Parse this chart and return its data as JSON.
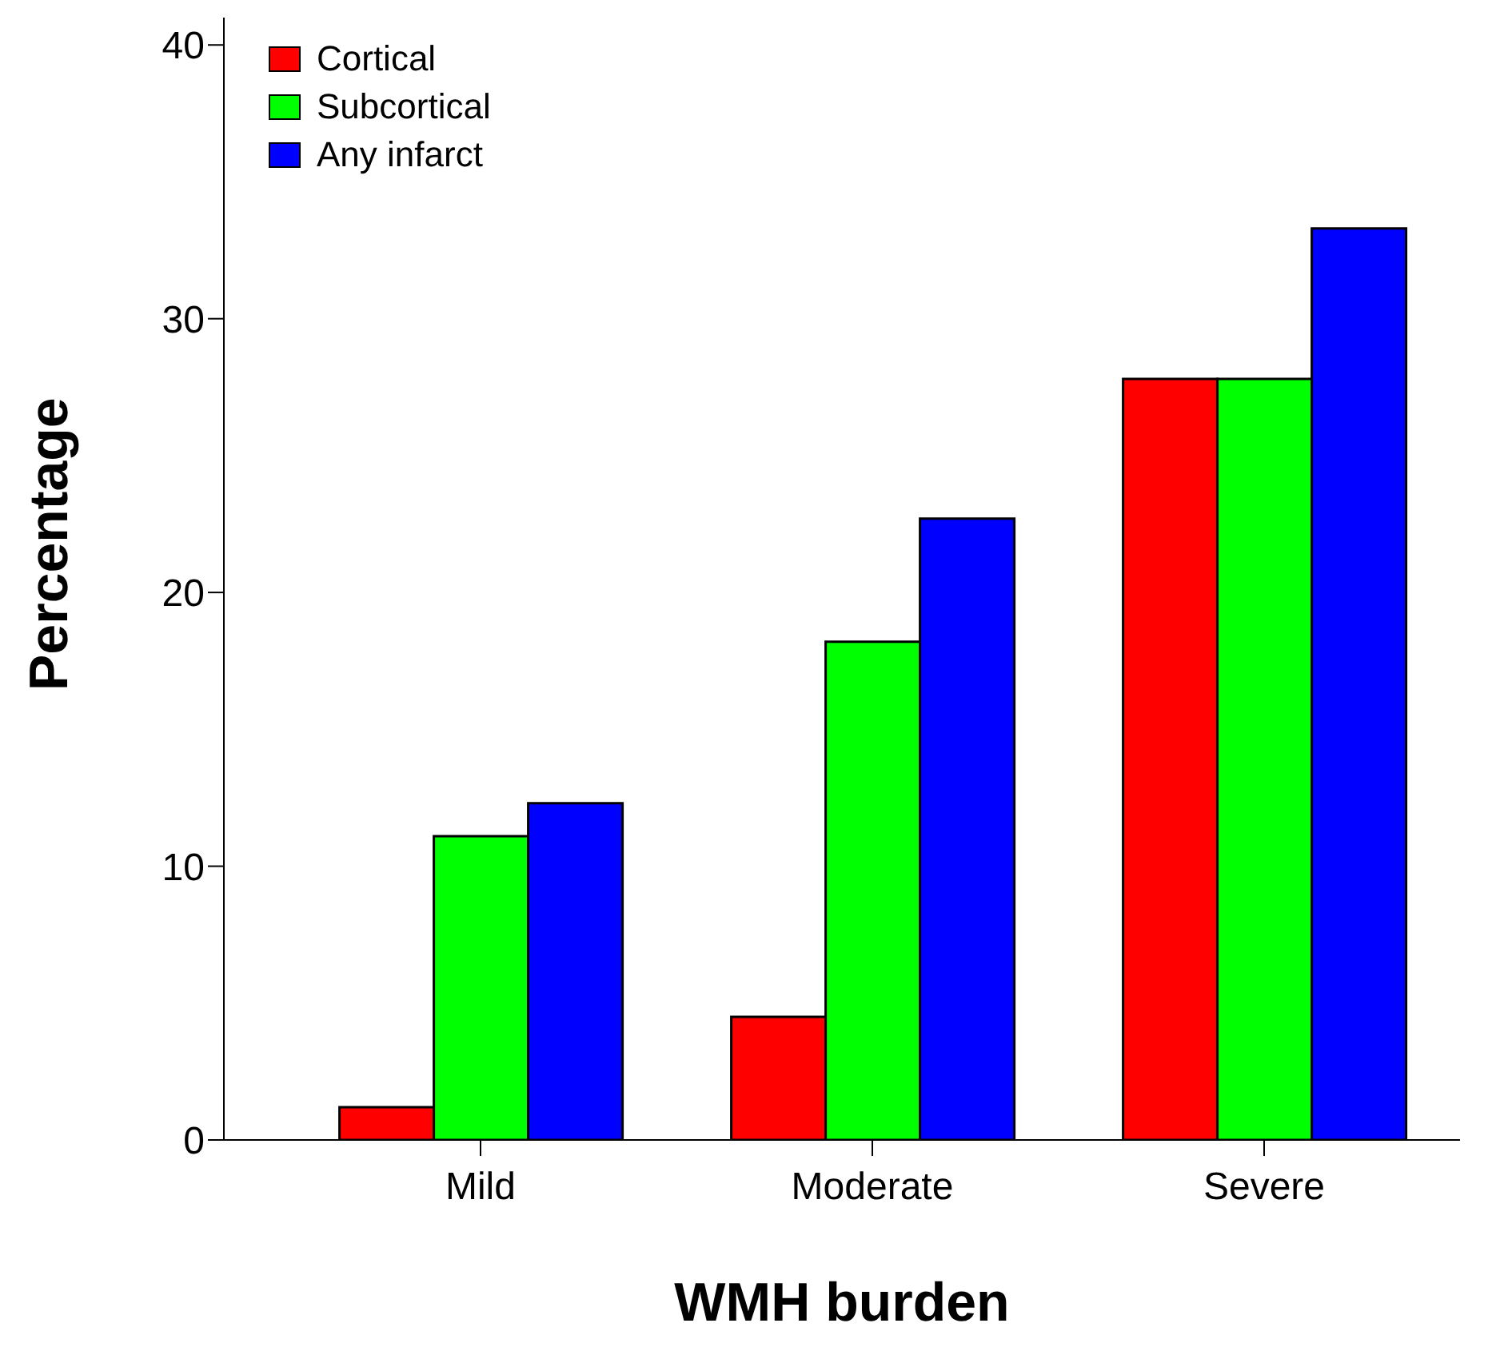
{
  "chart_data": {
    "type": "bar",
    "xlabel": "WMH burden",
    "ylabel": "Percentage",
    "categories": [
      "Mild",
      "Moderate",
      "Severe"
    ],
    "series": [
      {
        "name": "Cortical",
        "color": "#ff0000",
        "values": [
          1.2,
          4.5,
          27.8
        ]
      },
      {
        "name": "Subcortical",
        "color": "#00ff00",
        "values": [
          11.1,
          18.2,
          27.8
        ]
      },
      {
        "name": "Any infarct",
        "color": "#0000ff",
        "values": [
          12.3,
          22.7,
          33.3
        ]
      }
    ],
    "ylim": [
      0,
      41
    ],
    "yticks": [
      0,
      10,
      20,
      30,
      40
    ],
    "grid": false,
    "legend": "top left"
  }
}
